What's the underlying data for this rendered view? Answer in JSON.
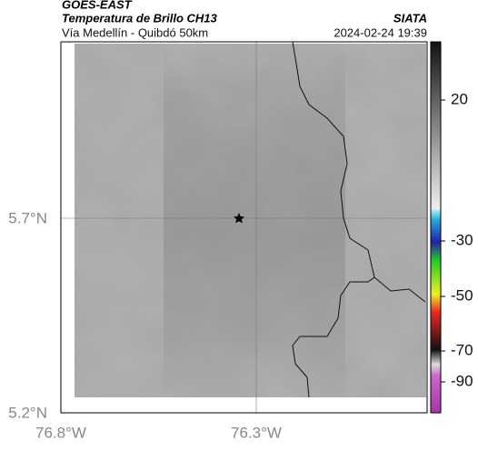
{
  "header": {
    "satellite": "GOES-EAST",
    "product": "Temperatura de Brillo CH13",
    "location": "Vía Medellín - Quibdó 50km",
    "agency": "SIATA",
    "datetime": "2024-02-24 19:39"
  },
  "map": {
    "lat_ticks": [
      "5.7°N",
      "5.2°N"
    ],
    "lon_ticks": [
      "76.8°W",
      "76.3°W"
    ]
  },
  "colorbar": {
    "ticks": [
      20,
      -30,
      -50,
      -70,
      -90
    ]
  }
}
